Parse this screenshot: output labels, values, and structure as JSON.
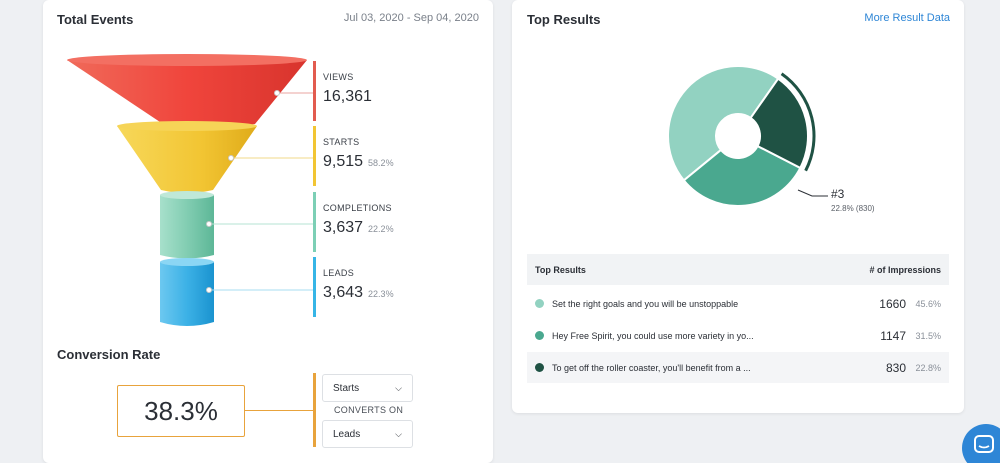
{
  "left_card": {
    "title": "Total Events",
    "date_range": "Jul 03, 2020 - Sep 04, 2020",
    "metrics": [
      {
        "label": "VIEWS",
        "value": "16,361",
        "pct": "",
        "color": "#e25b4f"
      },
      {
        "label": "STARTS",
        "value": "9,515",
        "pct": "58.2%",
        "color": "#f2c533"
      },
      {
        "label": "COMPLETIONS",
        "value": "3,637",
        "pct": "22.2%",
        "color": "#7ccfb5"
      },
      {
        "label": "LEADS",
        "value": "3,643",
        "pct": "22.3%",
        "color": "#36b5e6"
      }
    ],
    "conversion": {
      "title": "Conversion Rate",
      "rate": "38.3%",
      "from_select": "Starts",
      "converts_on": "CONVERTS ON",
      "to_select": "Leads"
    }
  },
  "right_card": {
    "title": "Top Results",
    "more_link": "More Result Data",
    "donut_callout": {
      "label": "#3",
      "detail": "22.8% (830)"
    },
    "table": {
      "headers": [
        "Top Results",
        "# of Impressions"
      ],
      "rows": [
        {
          "text": "Set the right goals and you will be unstoppable",
          "count": "1660",
          "pct": "45.6%",
          "color": "#92d2c1"
        },
        {
          "text": "Hey Free Spirit, you could use more variety in yo...",
          "count": "1147",
          "pct": "31.5%",
          "color": "#4aa88f"
        },
        {
          "text": "To get off the roller coaster, you'll benefit from a ...",
          "count": "830",
          "pct": "22.8%",
          "color": "#1f5244"
        }
      ]
    }
  },
  "chart_data": {
    "type": "pie",
    "categories": [
      "Set the right goals and you will be unstoppable",
      "Hey Free Spirit, you could use more variety in yo...",
      "To get off the roller coaster, you'll benefit from a ..."
    ],
    "values": [
      1660,
      1147,
      830
    ],
    "percentages": [
      45.6,
      31.5,
      22.8
    ],
    "colors": [
      "#92d2c1",
      "#4aa88f",
      "#1f5244"
    ],
    "highlighted_index": 2
  },
  "chat_button_icon": "chat-bubble-icon"
}
